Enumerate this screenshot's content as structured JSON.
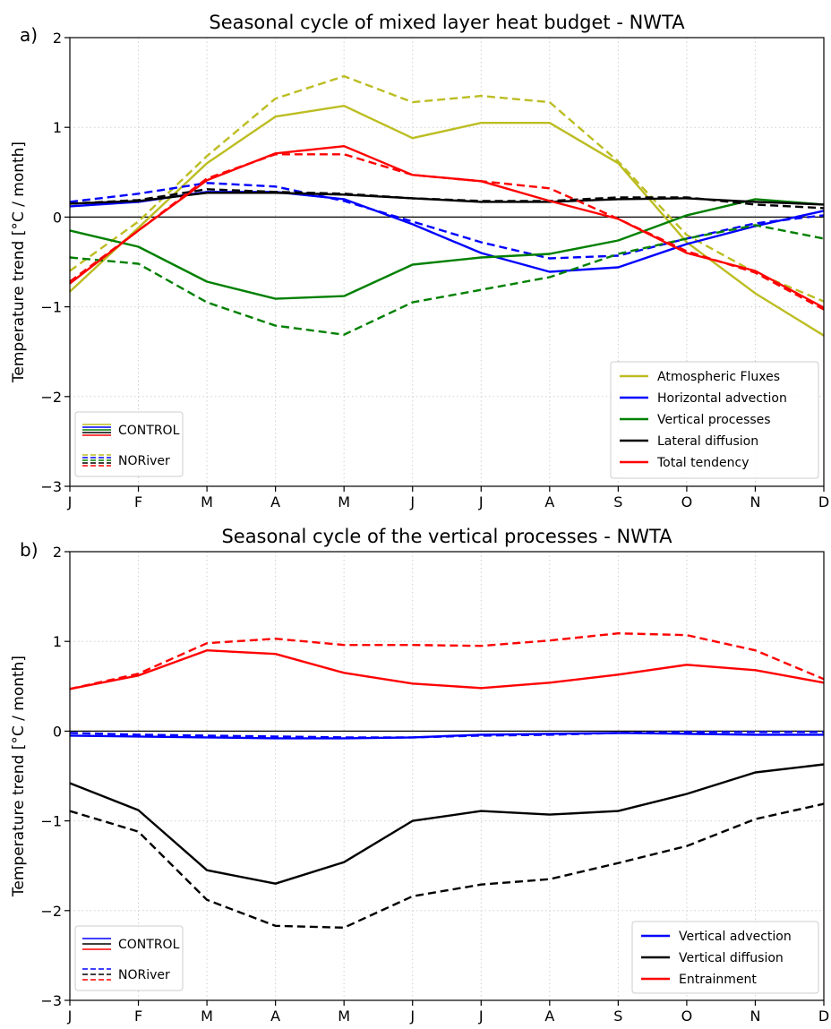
{
  "chart_data": [
    {
      "type": "line",
      "panel_label": "a)",
      "title": "Seasonal cycle of mixed layer heat budget - NWTA",
      "xlabel": "",
      "ylabel": "Temperature trend [°C / month]",
      "categories": [
        "J",
        "F",
        "M",
        "A",
        "M",
        "J",
        "J",
        "A",
        "S",
        "O",
        "N",
        "D"
      ],
      "ylim": [
        -3,
        2
      ],
      "yticks": [
        -3,
        -2,
        -1,
        0,
        1,
        2
      ],
      "ytick_labels": [
        "−3",
        "−2",
        "−1",
        "0",
        "1",
        "2"
      ],
      "grid": true,
      "legend_placement": "lower-right",
      "legend": [
        "Atmospheric Fluxes",
        "Horizontal advection",
        "Vertical processes",
        "Lateral diffusion",
        "Total tendency"
      ],
      "style_legend": [
        "CONTROL",
        "NORiver"
      ],
      "style_legend_placement": "lower-left",
      "series": [
        {
          "name": "Atmospheric Fluxes",
          "color": "#bcbd22",
          "style": "solid",
          "values": [
            -0.83,
            -0.12,
            0.6,
            1.12,
            1.24,
            0.88,
            1.05,
            1.05,
            0.6,
            -0.28,
            -0.85,
            -1.32
          ]
        },
        {
          "name": "Atmospheric Fluxes",
          "color": "#bcbd22",
          "style": "dashed",
          "values": [
            -0.6,
            -0.05,
            0.68,
            1.32,
            1.57,
            1.28,
            1.35,
            1.28,
            0.62,
            -0.2,
            -0.62,
            -0.94
          ]
        },
        {
          "name": "Horizontal advection",
          "color": "#0000ff",
          "style": "solid",
          "values": [
            0.12,
            0.17,
            0.28,
            0.28,
            0.2,
            -0.08,
            -0.4,
            -0.61,
            -0.56,
            -0.3,
            -0.1,
            0.07
          ]
        },
        {
          "name": "Horizontal advection",
          "color": "#0000ff",
          "style": "dashed",
          "values": [
            0.17,
            0.26,
            0.38,
            0.34,
            0.18,
            -0.05,
            -0.28,
            -0.46,
            -0.43,
            -0.24,
            -0.07,
            0.02
          ]
        },
        {
          "name": "Vertical processes",
          "color": "#008000",
          "style": "solid",
          "values": [
            -0.15,
            -0.33,
            -0.72,
            -0.91,
            -0.88,
            -0.53,
            -0.45,
            -0.41,
            -0.26,
            0.02,
            0.2,
            0.14
          ]
        },
        {
          "name": "Vertical processes",
          "color": "#008000",
          "style": "dashed",
          "values": [
            -0.45,
            -0.52,
            -0.95,
            -1.21,
            -1.31,
            -0.95,
            -0.81,
            -0.67,
            -0.41,
            -0.24,
            -0.09,
            -0.24
          ]
        },
        {
          "name": "Lateral diffusion",
          "color": "#000000",
          "style": "solid",
          "values": [
            0.15,
            0.18,
            0.27,
            0.27,
            0.25,
            0.21,
            0.17,
            0.17,
            0.2,
            0.21,
            0.17,
            0.14
          ]
        },
        {
          "name": "Lateral diffusion",
          "color": "#000000",
          "style": "dashed",
          "values": [
            0.15,
            0.19,
            0.31,
            0.28,
            0.26,
            0.21,
            0.18,
            0.18,
            0.22,
            0.22,
            0.14,
            0.1
          ]
        },
        {
          "name": "Total tendency",
          "color": "#ff0000",
          "style": "solid",
          "values": [
            -0.74,
            -0.15,
            0.41,
            0.71,
            0.79,
            0.47,
            0.4,
            0.18,
            -0.02,
            -0.4,
            -0.6,
            -1.01
          ]
        },
        {
          "name": "Total tendency",
          "color": "#ff0000",
          "style": "dashed",
          "values": [
            -0.72,
            -0.15,
            0.43,
            0.7,
            0.7,
            0.47,
            0.4,
            0.32,
            -0.02,
            -0.38,
            -0.62,
            -1.03
          ]
        }
      ]
    },
    {
      "type": "line",
      "panel_label": "b)",
      "title": "Seasonal cycle of the vertical processes - NWTA",
      "xlabel": "",
      "ylabel": "Temperature trend [°C / month]",
      "categories": [
        "J",
        "F",
        "M",
        "A",
        "M",
        "J",
        "J",
        "A",
        "S",
        "O",
        "N",
        "D"
      ],
      "ylim": [
        -3,
        2
      ],
      "yticks": [
        -3,
        -2,
        -1,
        0,
        1,
        2
      ],
      "ytick_labels": [
        "−3",
        "−2",
        "−1",
        "0",
        "1",
        "2"
      ],
      "grid": true,
      "legend_placement": "lower-right",
      "legend": [
        "Vertical advection",
        "Vertical diffusion",
        "Entrainment"
      ],
      "style_legend": [
        "CONTROL",
        "NORiver"
      ],
      "style_legend_placement": "lower-left",
      "series": [
        {
          "name": "Vertical advection",
          "color": "#0000ff",
          "style": "solid",
          "values": [
            -0.05,
            -0.06,
            -0.07,
            -0.08,
            -0.08,
            -0.07,
            -0.04,
            -0.03,
            -0.02,
            -0.03,
            -0.04,
            -0.04
          ]
        },
        {
          "name": "Vertical advection",
          "color": "#0000ff",
          "style": "dashed",
          "values": [
            -0.02,
            -0.04,
            -0.05,
            -0.06,
            -0.07,
            -0.07,
            -0.05,
            -0.04,
            -0.02,
            -0.01,
            -0.01,
            -0.01
          ]
        },
        {
          "name": "Vertical diffusion",
          "color": "#000000",
          "style": "solid",
          "values": [
            -0.58,
            -0.88,
            -1.55,
            -1.7,
            -1.46,
            -1.0,
            -0.89,
            -0.93,
            -0.89,
            -0.7,
            -0.46,
            -0.37
          ]
        },
        {
          "name": "Vertical diffusion",
          "color": "#000000",
          "style": "dashed",
          "values": [
            -0.89,
            -1.12,
            -1.88,
            -2.17,
            -2.19,
            -1.84,
            -1.71,
            -1.65,
            -1.47,
            -1.28,
            -0.98,
            -0.81
          ]
        },
        {
          "name": "Entrainment",
          "color": "#ff0000",
          "style": "solid",
          "values": [
            0.47,
            0.62,
            0.9,
            0.86,
            0.65,
            0.53,
            0.48,
            0.54,
            0.63,
            0.74,
            0.68,
            0.54
          ]
        },
        {
          "name": "Entrainment",
          "color": "#ff0000",
          "style": "dashed",
          "values": [
            0.47,
            0.64,
            0.98,
            1.03,
            0.96,
            0.96,
            0.95,
            1.01,
            1.09,
            1.07,
            0.9,
            0.58
          ]
        }
      ]
    }
  ]
}
